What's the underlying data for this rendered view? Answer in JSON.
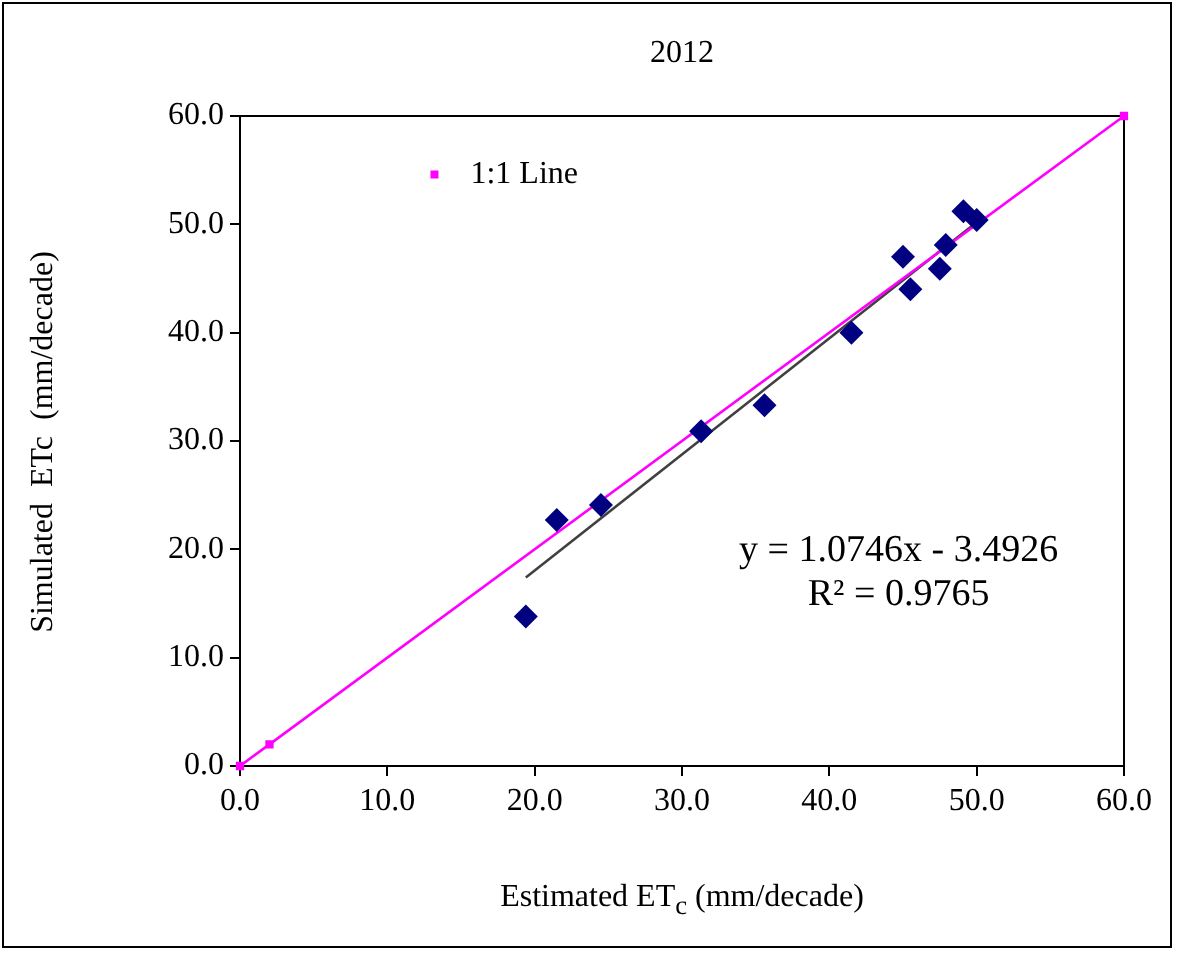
{
  "chart_data": {
    "type": "scatter",
    "title": "2012",
    "xlabel": "Estimated ET$_{c}$ (mm/decade)",
    "ylabel": "Simulated  ETc  (mm/decade)",
    "xlim": [
      0,
      60
    ],
    "ylim": [
      0,
      60
    ],
    "xticks": [
      {
        "value": 0,
        "label": "0.0"
      },
      {
        "value": 10,
        "label": "10.0"
      },
      {
        "value": 20,
        "label": "20.0"
      },
      {
        "value": 30,
        "label": "30.0"
      },
      {
        "value": 40,
        "label": "40.0"
      },
      {
        "value": 50,
        "label": "50.0"
      },
      {
        "value": 60,
        "label": "60.0"
      }
    ],
    "yticks": [
      {
        "value": 0,
        "label": "0.0"
      },
      {
        "value": 10,
        "label": "10.0"
      },
      {
        "value": 20,
        "label": "20.0"
      },
      {
        "value": 30,
        "label": "30.0"
      },
      {
        "value": 40,
        "label": "40.0"
      },
      {
        "value": 50,
        "label": "50.0"
      },
      {
        "value": 60,
        "label": "60.0"
      }
    ],
    "grid": false,
    "legend": "top left",
    "annotations": [
      "y = 1.0746x - 3.4926",
      "R² = 0.9765"
    ],
    "series": [
      {
        "color": "#000080",
        "marker": "diamond",
        "x": [
          19.4,
          21.5,
          24.5,
          31.3,
          35.6,
          41.5,
          45.0,
          45.5,
          47.5,
          47.9,
          49.1,
          50.0
        ],
        "values": [
          13.8,
          22.7,
          24.1,
          30.9,
          33.3,
          40.0,
          47.0,
          44.0,
          45.9,
          48.1,
          51.2,
          50.4
        ]
      },
      {
        "name": "1:1 Line",
        "type": "line",
        "color": "#ff00ff",
        "marker": "square",
        "line_style": "solid",
        "x": [
          0,
          2,
          60
        ],
        "values": [
          0,
          2,
          60
        ]
      },
      {
        "type": "line",
        "color": "#404040",
        "marker": "none",
        "line_style": "solid",
        "x": [
          19.4,
          50.0
        ],
        "values": [
          17.4,
          50.2
        ]
      }
    ]
  }
}
